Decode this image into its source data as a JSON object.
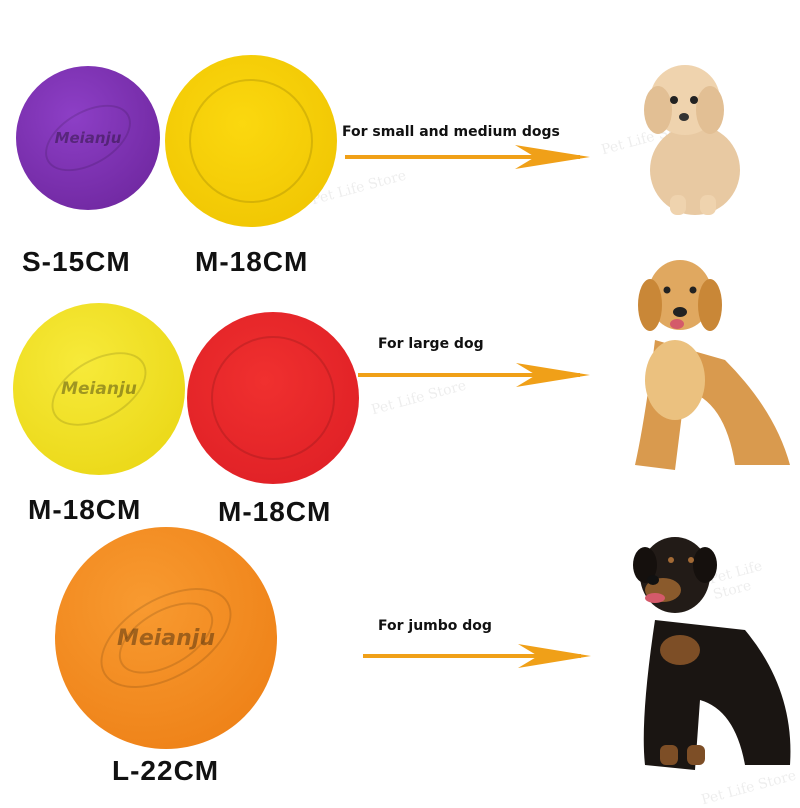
{
  "watermark": "Pet Life Store",
  "colors": {
    "purple": "#7b30b2",
    "yellow": "#f7cf00",
    "lemon": "#f2e223",
    "red": "#e82429",
    "orange": "#f28a1e",
    "arrow": "#f0a018"
  },
  "rows": [
    {
      "caption": "For small and medium dogs",
      "discs": [
        {
          "label": "S-15CM",
          "brand": "Meianju"
        },
        {
          "label": "M-18CM"
        }
      ],
      "dog": "poodle"
    },
    {
      "caption": "For large dog",
      "discs": [
        {
          "label": "M-18CM",
          "brand": "Meianju"
        },
        {
          "label": "M-18CM"
        }
      ],
      "dog": "golden-retriever"
    },
    {
      "caption": "For jumbo dog",
      "discs": [
        {
          "label": "L-22CM",
          "brand": "Meianju"
        }
      ],
      "dog": "rottweiler"
    }
  ]
}
